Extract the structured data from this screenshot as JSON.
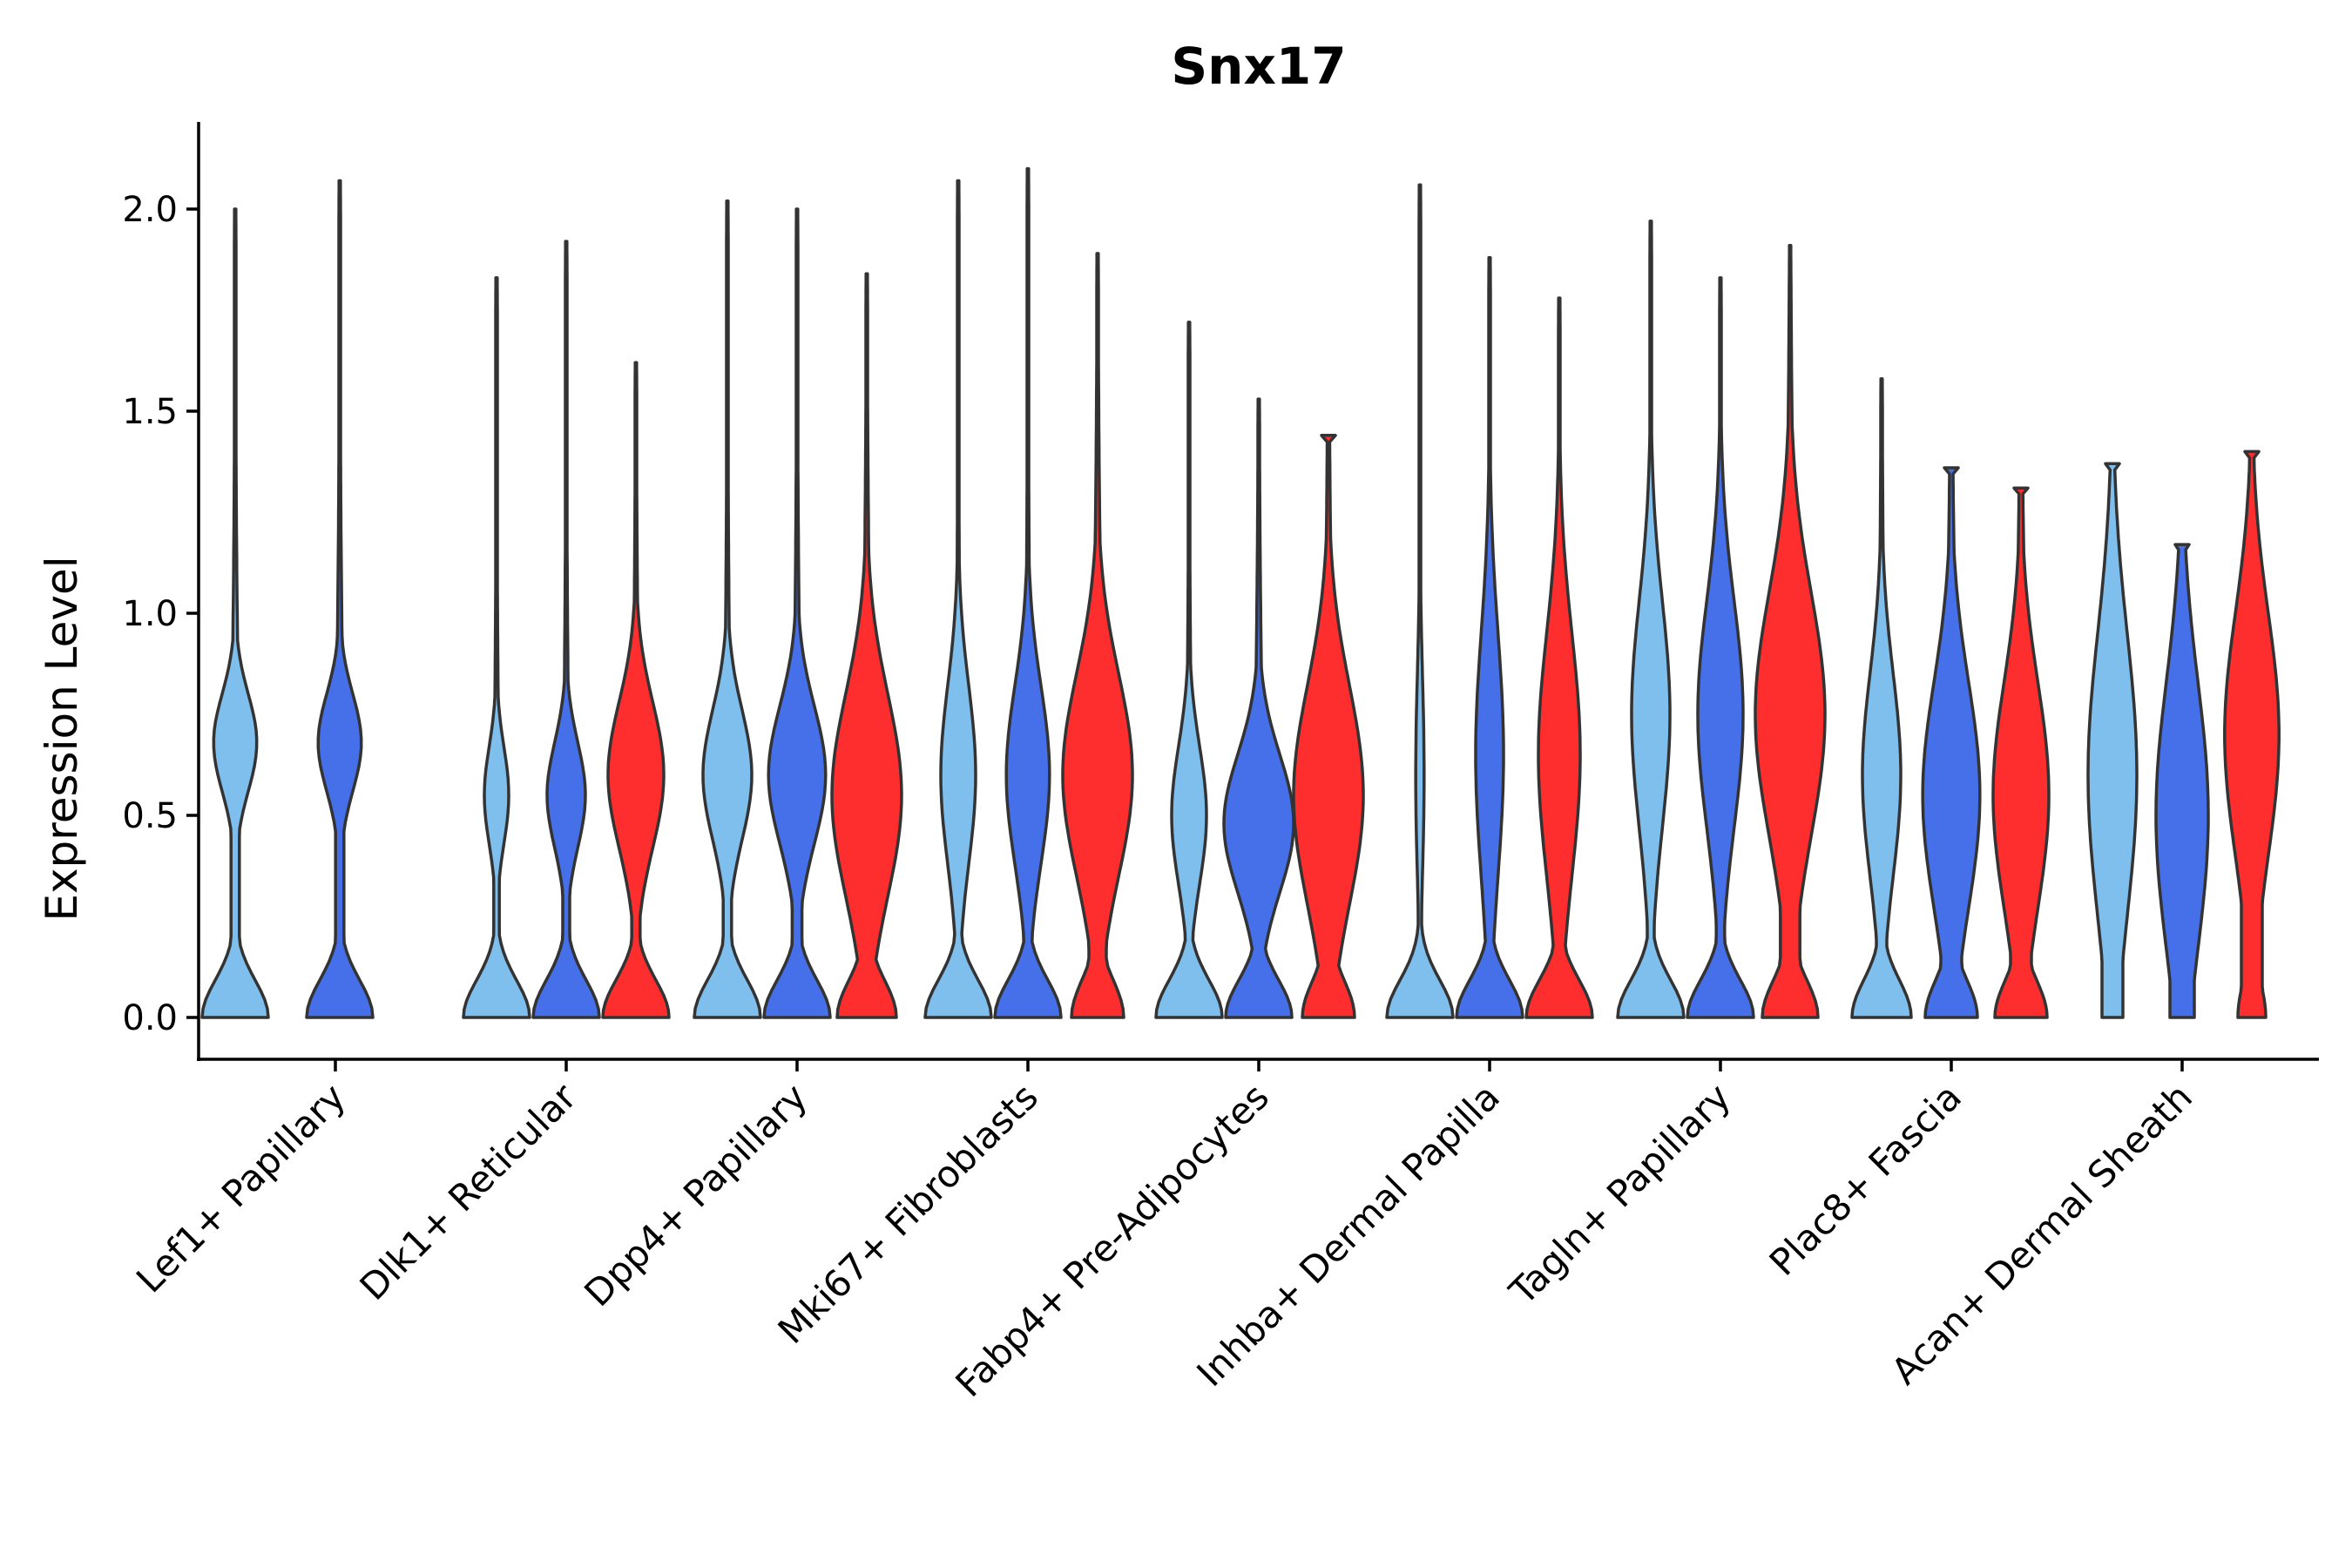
{
  "chart_data": {
    "type": "violin",
    "title": "Snx17",
    "xlabel": "",
    "ylabel": "Expression Level",
    "ylim": [
      -0.1,
      2.2
    ],
    "yticks": [
      "0.0",
      "0.5",
      "1.0",
      "1.5",
      "2.0"
    ],
    "ytick_values": [
      0,
      0.5,
      1.0,
      1.5,
      2.0
    ],
    "group_colors": [
      "#7FBFED",
      "#4570EA",
      "#FF2E2E"
    ],
    "categories": [
      "Lef1+ Papillary",
      "Dlk1+ Reticular",
      "Dpp4+ Papillary",
      "Mki67+ Fibroblasts",
      "Fabp4+ Pre-Adipocytes",
      "Inhba+ Dermal Papilla",
      "Tagln+ Papillary",
      "Plac8+ Fascia",
      "Acan+ Dermal Sheath"
    ],
    "violins": [
      {
        "category": "Lef1+ Papillary",
        "group": 0,
        "max": 2.0,
        "peak_zero": 0.95,
        "mode": 0.68,
        "mode_w": 0.62,
        "mode_sd": 0.12,
        "tail": 0.12,
        "flat_top": false
      },
      {
        "category": "Lef1+ Papillary",
        "group": 1,
        "max": 2.07,
        "peak_zero": 0.95,
        "mode": 0.68,
        "mode_w": 0.62,
        "mode_sd": 0.12,
        "tail": 0.12,
        "flat_top": false
      },
      {
        "category": "Dlk1+ Reticular",
        "group": 0,
        "max": 1.83,
        "peak_zero": 0.95,
        "mode": 0.55,
        "mode_w": 0.35,
        "mode_sd": 0.12,
        "tail": 0.08,
        "flat_top": false
      },
      {
        "category": "Dlk1+ Reticular",
        "group": 1,
        "max": 1.92,
        "peak_zero": 0.95,
        "mode": 0.55,
        "mode_w": 0.55,
        "mode_sd": 0.13,
        "tail": 0.1,
        "flat_top": false
      },
      {
        "category": "Dlk1+ Reticular",
        "group": 2,
        "max": 1.62,
        "peak_zero": 0.95,
        "mode": 0.6,
        "mode_w": 0.8,
        "mode_sd": 0.18,
        "tail": 0.12,
        "flat_top": false
      },
      {
        "category": "Dpp4+ Papillary",
        "group": 0,
        "max": 2.02,
        "peak_zero": 0.95,
        "mode": 0.6,
        "mode_w": 0.7,
        "mode_sd": 0.16,
        "tail": 0.12,
        "flat_top": false
      },
      {
        "category": "Dpp4+ Papillary",
        "group": 1,
        "max": 2.0,
        "peak_zero": 0.95,
        "mode": 0.6,
        "mode_w": 0.82,
        "mode_sd": 0.17,
        "tail": 0.14,
        "flat_top": false
      },
      {
        "category": "Dpp4+ Papillary",
        "group": 2,
        "max": 1.84,
        "peak_zero": 0.85,
        "mode": 0.55,
        "mode_w": 1.0,
        "mode_sd": 0.25,
        "tail": 0.22,
        "flat_top": false
      },
      {
        "category": "Mki67+ Fibroblasts",
        "group": 0,
        "max": 2.07,
        "peak_zero": 0.95,
        "mode": 0.6,
        "mode_w": 0.5,
        "mode_sd": 0.22,
        "tail": 0.1,
        "flat_top": false
      },
      {
        "category": "Mki67+ Fibroblasts",
        "group": 1,
        "max": 2.1,
        "peak_zero": 0.95,
        "mode": 0.6,
        "mode_w": 0.62,
        "mode_sd": 0.22,
        "tail": 0.12,
        "flat_top": false
      },
      {
        "category": "Mki67+ Fibroblasts",
        "group": 2,
        "max": 1.89,
        "peak_zero": 0.75,
        "mode": 0.6,
        "mode_w": 1.0,
        "mode_sd": 0.25,
        "tail": 0.25,
        "flat_top": false
      },
      {
        "category": "Fabp4+ Pre-Adipocytes",
        "group": 0,
        "max": 1.72,
        "peak_zero": 0.95,
        "mode": 0.5,
        "mode_w": 0.5,
        "mode_sd": 0.17,
        "tail": 0.1,
        "flat_top": false
      },
      {
        "category": "Fabp4+ Pre-Adipocytes",
        "group": 1,
        "max": 1.53,
        "peak_zero": 0.95,
        "mode": 0.48,
        "mode_w": 1.0,
        "mode_sd": 0.17,
        "tail": 0.18,
        "flat_top": false
      },
      {
        "category": "Fabp4+ Pre-Adipocytes",
        "group": 2,
        "max": 1.44,
        "peak_zero": 0.75,
        "mode": 0.55,
        "mode_w": 1.0,
        "mode_sd": 0.27,
        "tail": 0.25,
        "flat_top": true
      },
      {
        "category": "Inhba+ Dermal Papilla",
        "group": 0,
        "max": 2.06,
        "peak_zero": 0.95,
        "mode": 0.6,
        "mode_w": 0.12,
        "mode_sd": 0.25,
        "tail": 0.05,
        "flat_top": false
      },
      {
        "category": "Inhba+ Dermal Papilla",
        "group": 1,
        "max": 1.88,
        "peak_zero": 0.95,
        "mode": 0.65,
        "mode_w": 0.4,
        "mode_sd": 0.3,
        "tail": 0.08,
        "flat_top": false
      },
      {
        "category": "Inhba+ Dermal Papilla",
        "group": 2,
        "max": 1.78,
        "peak_zero": 0.95,
        "mode": 0.65,
        "mode_w": 0.6,
        "mode_sd": 0.3,
        "tail": 0.12,
        "flat_top": false
      },
      {
        "category": "Tagln+ Papillary",
        "group": 0,
        "max": 1.97,
        "peak_zero": 0.95,
        "mode": 0.75,
        "mode_w": 0.55,
        "mode_sd": 0.28,
        "tail": 0.1,
        "flat_top": false
      },
      {
        "category": "Tagln+ Papillary",
        "group": 1,
        "max": 1.83,
        "peak_zero": 0.95,
        "mode": 0.75,
        "mode_w": 0.65,
        "mode_sd": 0.28,
        "tail": 0.12,
        "flat_top": false
      },
      {
        "category": "Tagln+ Papillary",
        "group": 2,
        "max": 1.91,
        "peak_zero": 0.8,
        "mode": 0.75,
        "mode_w": 1.0,
        "mode_sd": 0.3,
        "tail": 0.28,
        "flat_top": false
      },
      {
        "category": "Plac8+ Fascia",
        "group": 0,
        "max": 1.58,
        "peak_zero": 0.85,
        "mode": 0.6,
        "mode_w": 0.55,
        "mode_sd": 0.25,
        "tail": 0.15,
        "flat_top": false
      },
      {
        "category": "Plac8+ Fascia",
        "group": 1,
        "max": 1.36,
        "peak_zero": 0.75,
        "mode": 0.55,
        "mode_w": 0.82,
        "mode_sd": 0.28,
        "tail": 0.3,
        "flat_top": true
      },
      {
        "category": "Plac8+ Fascia",
        "group": 2,
        "max": 1.31,
        "peak_zero": 0.75,
        "mode": 0.55,
        "mode_w": 0.8,
        "mode_sd": 0.28,
        "tail": 0.3,
        "flat_top": true
      },
      {
        "category": "Acan+ Dermal Sheath",
        "group": 0,
        "max": 1.37,
        "peak_zero": 0.2,
        "mode": 0.6,
        "mode_w": 0.7,
        "mode_sd": 0.35,
        "tail": 0.3,
        "flat_top": true
      },
      {
        "category": "Acan+ Dermal Sheath",
        "group": 1,
        "max": 1.17,
        "peak_zero": 0.3,
        "mode": 0.5,
        "mode_w": 0.75,
        "mode_sd": 0.33,
        "tail": 0.35,
        "flat_top": true
      },
      {
        "category": "Acan+ Dermal Sheath",
        "group": 2,
        "max": 1.4,
        "peak_zero": 0.4,
        "mode": 0.7,
        "mode_w": 0.78,
        "mode_sd": 0.3,
        "tail": 0.3,
        "flat_top": true
      }
    ]
  }
}
